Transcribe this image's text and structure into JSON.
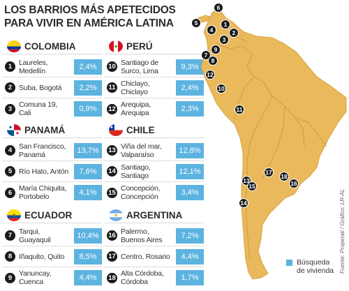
{
  "title": "LOS BARRIOS MÁS APETECIDOS PARA VIVIR EN AMÉRICA LATINA",
  "colors": {
    "land": "#e9b95c",
    "value_box": "#5cb3e0",
    "pin": "#1a1a1a"
  },
  "countries": [
    {
      "name": "COLOMBIA",
      "flag": "colombia-flag",
      "items": [
        {
          "num": "1",
          "place": "Laureles,\nMedellín",
          "value": "2,4%"
        },
        {
          "num": "2",
          "place": "Suba, Bogotá",
          "value": "2,2%"
        },
        {
          "num": "3",
          "place": "Comuna 19,\nCali",
          "value": "0,9%"
        }
      ]
    },
    {
      "name": "PERÚ",
      "flag": "peru-flag",
      "items": [
        {
          "num": "10",
          "place": "Santiago de\nSurco, Lima",
          "value": "9,3%"
        },
        {
          "num": "11",
          "place": "Chiclayo,\nChiclayo",
          "value": "2,4%"
        },
        {
          "num": "12",
          "place": "Arequipa,\nArequipa",
          "value": "2,3%"
        }
      ]
    },
    {
      "name": "PANAMÁ",
      "flag": "panama-flag",
      "items": [
        {
          "num": "4",
          "place": "San Francisco,\nPanamá",
          "value": "13,7%"
        },
        {
          "num": "5",
          "place": "Río Hato, Antón",
          "value": "7,6%"
        },
        {
          "num": "6",
          "place": "María Chiquita,\nPortobelo",
          "value": "4,1%"
        }
      ]
    },
    {
      "name": "CHILE",
      "flag": "chile-flag",
      "items": [
        {
          "num": "13",
          "place": "Viña del mar,\nValparaíso",
          "value": "12,8%"
        },
        {
          "num": "14",
          "place": "Santiago,\nSantiago",
          "value": "12,1%"
        },
        {
          "num": "15",
          "place": "Concepción,\nConcepción",
          "value": "3,4%"
        }
      ]
    },
    {
      "name": "ECUADOR",
      "flag": "ecuador-flag",
      "items": [
        {
          "num": "7",
          "place": "Tarqui,\nGuayaquil",
          "value": "10,4%"
        },
        {
          "num": "8",
          "place": "Iñaquito, Quito",
          "value": "8,5%"
        },
        {
          "num": "9",
          "place": "Yanuncay,\nCuenca",
          "value": "4,4%"
        }
      ]
    },
    {
      "name": "ARGENTINA",
      "flag": "argentina-flag",
      "items": [
        {
          "num": "16",
          "place": "Palermo,\nBuenos Aires",
          "value": "7,2%"
        },
        {
          "num": "17",
          "place": "Centro, Rosario",
          "value": "4,4%"
        },
        {
          "num": "18",
          "place": "Alta Córdoba,\nCórdoba",
          "value": "1,7%"
        }
      ]
    }
  ],
  "map_pins": [
    "1",
    "2",
    "3",
    "4",
    "5",
    "6",
    "7",
    "8",
    "9",
    "10",
    "11",
    "12",
    "13",
    "14",
    "15",
    "16",
    "17",
    "18"
  ],
  "legend": {
    "label": "Búsqueda\nde vivienda"
  },
  "credit": "Fuente: Properati / Gráfico: LR-AL"
}
